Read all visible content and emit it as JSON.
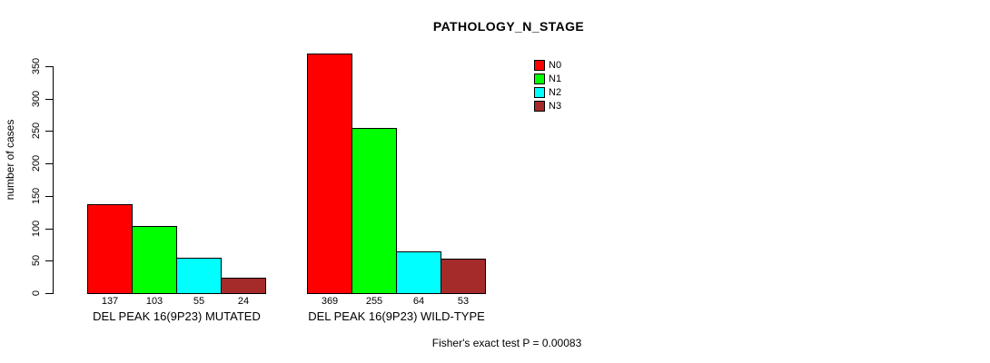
{
  "chart_data": {
    "type": "bar",
    "title": "PATHOLOGY_N_STAGE",
    "ylabel": "number of cases",
    "xlabel": "",
    "categories": [
      "DEL PEAK 16(9P23) MUTATED",
      "DEL PEAK 16(9P23) WILD-TYPE"
    ],
    "series": [
      {
        "name": "N0",
        "color": "#ff0000",
        "values": [
          137,
          369
        ]
      },
      {
        "name": "N1",
        "color": "#00ff00",
        "values": [
          103,
          255
        ]
      },
      {
        "name": "N2",
        "color": "#00ffff",
        "values": [
          55,
          64
        ]
      },
      {
        "name": "N3",
        "color": "#a52a2a",
        "values": [
          24,
          53
        ]
      }
    ],
    "yticks": [
      0,
      50,
      100,
      150,
      200,
      250,
      300,
      350
    ],
    "ylim": [
      0,
      350
    ],
    "grid": false,
    "legend_position": "top-right",
    "bar_value_labels_shown": true,
    "annotation": "Fisher's exact test P = 0.00083"
  }
}
